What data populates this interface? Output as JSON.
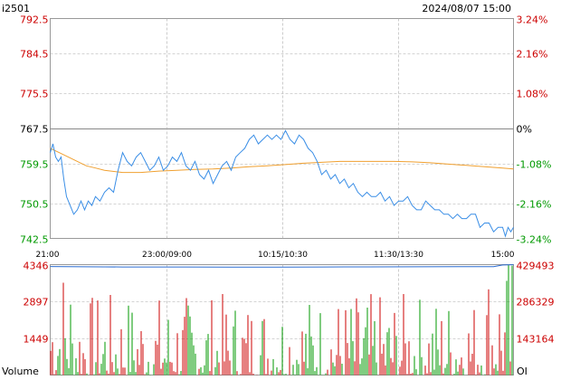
{
  "symbol": "i2501",
  "datetime": "2024/08/07 15:00",
  "colors": {
    "up": "#cc0000",
    "down": "#009900",
    "price_line": "#3a8ee6",
    "avg_line": "#f0a030",
    "oi_line": "#2a6bd0",
    "grid": "#aaaaaa",
    "frame": "#999999",
    "neutral": "#000000"
  },
  "chart_data": {
    "type": "line",
    "time_ticks": [
      "21:00",
      "23:00/09:00",
      "10:15/10:30",
      "11:30/13:30",
      "15:00"
    ],
    "price_axis": {
      "labels": [
        "792.5",
        "784.5",
        "775.5",
        "767.5",
        "759.5",
        "750.5",
        "742.5"
      ],
      "values": [
        792.5,
        784.5,
        775.5,
        767.5,
        759.5,
        750.5,
        742.5
      ],
      "reference": 767.5,
      "ylim": [
        742.5,
        792.5
      ]
    },
    "pct_axis": {
      "labels": [
        "3.24%",
        "2.16%",
        "1.08%",
        "0%",
        "-1.08%",
        "-2.16%",
        "-3.24%"
      ]
    },
    "series": [
      {
        "key": "price",
        "x": [
          0,
          3,
          6,
          9,
          12,
          15,
          18,
          22,
          26,
          30,
          34,
          38,
          42,
          46,
          50,
          55,
          60,
          65,
          70,
          75,
          80,
          85,
          90,
          95,
          100,
          105,
          110,
          115,
          120,
          125,
          130,
          135,
          140,
          145,
          150,
          155,
          160,
          165,
          170,
          175,
          180,
          185,
          190,
          195,
          200,
          205,
          210,
          215,
          220,
          225,
          230,
          235,
          240,
          245,
          250,
          255,
          260,
          265,
          270,
          275,
          280,
          285,
          290,
          295,
          300,
          305,
          310,
          315,
          320,
          325,
          330,
          335,
          340,
          345,
          350,
          355,
          360,
          365,
          370,
          375,
          380,
          385,
          390,
          395,
          400,
          405,
          410,
          415,
          420,
          425,
          430,
          435,
          440,
          445,
          450,
          455,
          460,
          465,
          470,
          475,
          480,
          485,
          490,
          495,
          500,
          503,
          506,
          509,
          512
        ],
        "y": [
          762,
          764,
          761,
          760,
          761,
          756,
          752,
          750,
          748,
          749,
          751,
          749,
          751,
          750,
          752,
          751,
          753,
          754,
          753,
          758,
          762,
          760,
          759,
          761,
          762,
          760,
          758,
          759,
          761,
          758,
          759,
          761,
          760,
          762,
          759,
          758,
          760,
          757,
          756,
          758,
          755,
          757,
          759,
          760,
          758,
          761,
          762,
          763,
          765,
          766,
          764,
          765,
          766,
          765,
          766,
          765,
          767,
          765,
          764,
          766,
          765,
          763,
          762,
          760,
          757,
          758,
          756,
          757,
          755,
          756,
          754,
          755,
          753,
          752,
          753,
          752,
          752,
          753,
          751,
          752,
          750,
          751,
          751,
          752,
          750,
          749,
          749,
          751,
          750,
          749,
          749,
          748,
          748,
          747,
          748,
          747,
          747,
          748,
          748,
          745,
          746,
          746,
          744,
          745,
          745,
          743,
          745,
          744,
          745
        ]
      },
      {
        "key": "average",
        "x": [
          0,
          10,
          20,
          30,
          40,
          50,
          60,
          80,
          100,
          120,
          140,
          160,
          180,
          200,
          220,
          240,
          260,
          280,
          300,
          320,
          340,
          360,
          380,
          400,
          420,
          440,
          460,
          480,
          500,
          512
        ],
        "y": [
          763,
          762,
          761,
          760,
          759,
          758.5,
          758,
          757.5,
          757.5,
          757.8,
          758,
          758.2,
          758.3,
          758.5,
          758.8,
          759,
          759.3,
          759.6,
          759.8,
          760,
          760,
          760,
          760,
          759.9,
          759.7,
          759.4,
          759.1,
          758.8,
          758.5,
          758.3
        ]
      },
      {
        "key": "open_interest",
        "x": [
          0,
          20,
          40,
          60,
          80,
          100,
          150,
          200,
          250,
          300,
          350,
          400,
          450,
          490,
          500,
          512
        ],
        "y": [
          422000,
          421500,
          421000,
          420800,
          420500,
          420300,
          420200,
          420000,
          420100,
          420300,
          420600,
          421000,
          421300,
          421700,
          428000,
          429000
        ]
      }
    ],
    "volume_axis": {
      "labels": [
        "4346",
        "2897",
        "1449"
      ],
      "ylim": [
        0,
        4346
      ]
    },
    "oi_axis": {
      "labels": [
        "429493",
        "286329",
        "143164"
      ],
      "ylim": [
        0,
        429493
      ]
    },
    "volume_label": "Volume",
    "oi_label": "OI"
  }
}
